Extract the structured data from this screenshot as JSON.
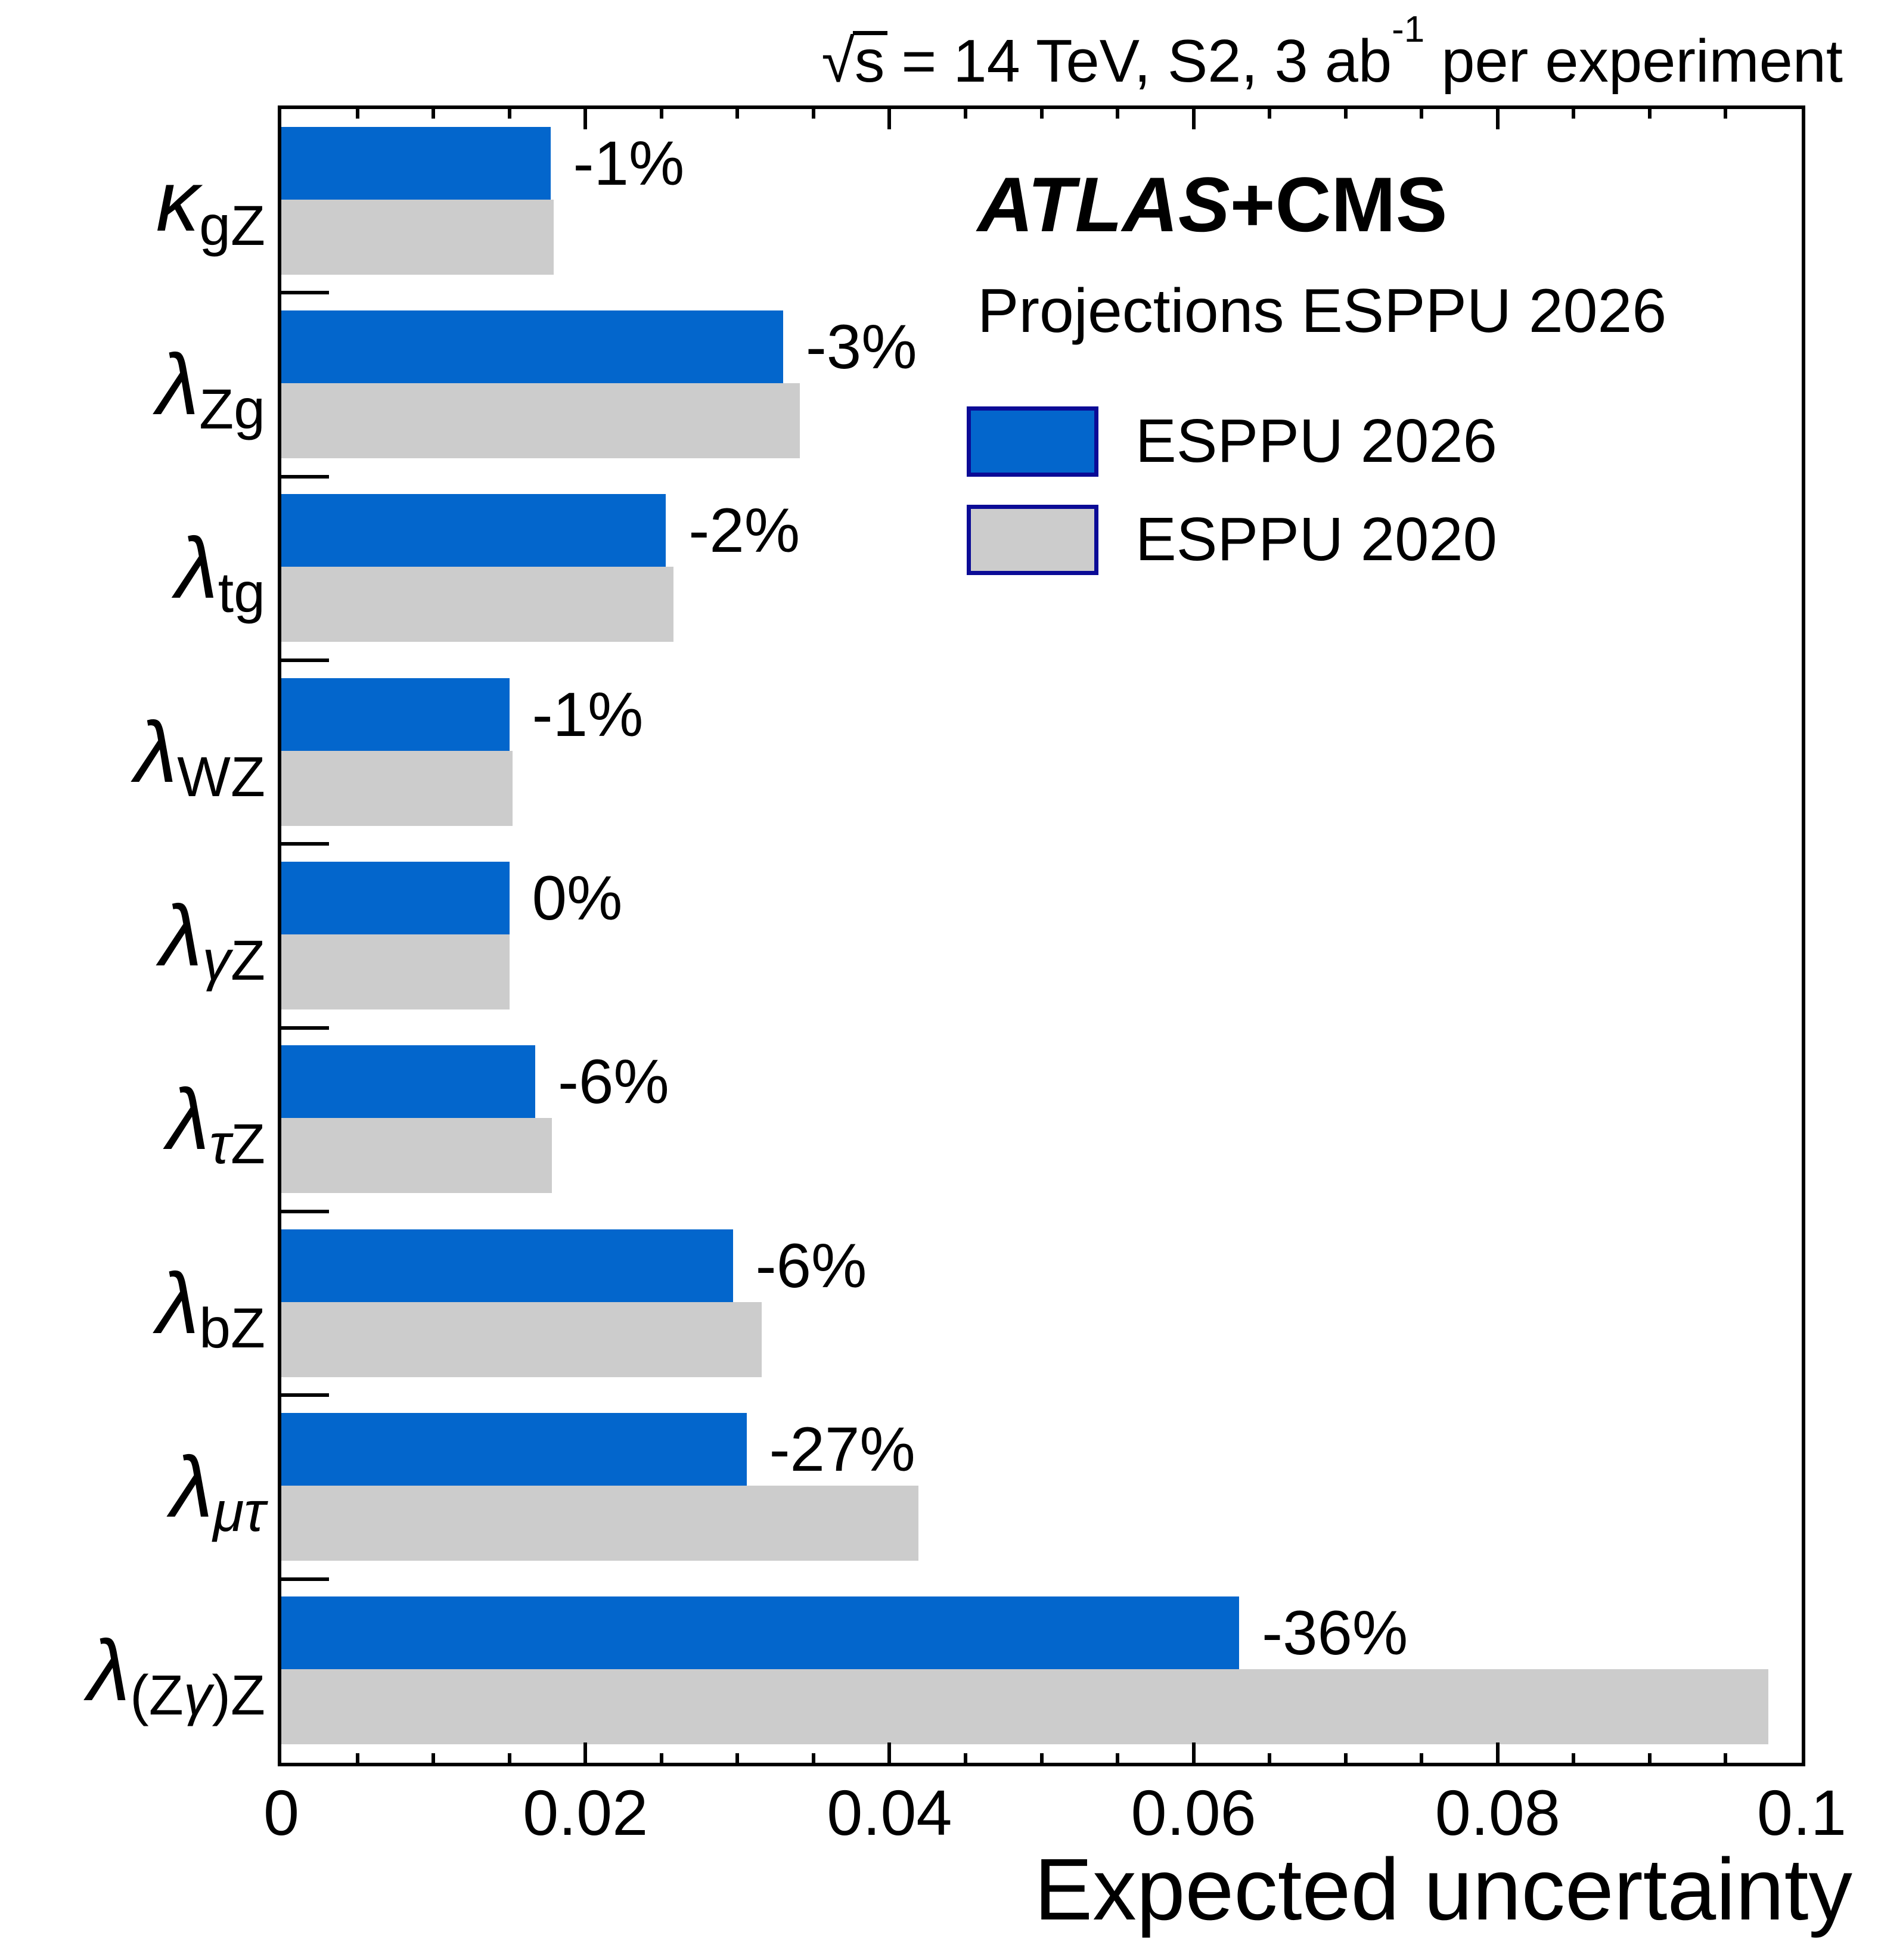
{
  "header": {
    "sqrt": "√",
    "sqrt_arg": "s",
    "title_mid": " = 14 TeV, S2, 3 ab",
    "lumi_exponent": "-1",
    "title_end": " per experiment"
  },
  "annotations": {
    "experiment_italic": "ATLAS",
    "experiment_plain": "+CMS",
    "subtitle": "Projections ESPPU 2026"
  },
  "legend": [
    {
      "label": "ESPPU 2026",
      "color": "#0366cc"
    },
    {
      "label": "ESPPU 2020",
      "color": "#cccccc"
    }
  ],
  "axis": {
    "x_title": "Expected uncertainty"
  },
  "chart_data": {
    "type": "bar",
    "orientation": "horizontal",
    "title": "√s = 14 TeV, S2, 3 ab⁻¹ per experiment",
    "xlabel": "Expected uncertainty",
    "xlim": [
      0,
      0.1
    ],
    "x_major_step": 0.02,
    "x_minor_step": 0.005,
    "x_tick_values": [
      0,
      0.02,
      0.04,
      0.06,
      0.08,
      0.1
    ],
    "x_tick_labels": [
      "0",
      "0.02",
      "0.04",
      "0.06",
      "0.08",
      "0.1"
    ],
    "grid": false,
    "legend_position": "top-right",
    "categories": [
      {
        "id": "kgZ",
        "main": "κ",
        "sub": "gZ"
      },
      {
        "id": "lZg",
        "main": "λ",
        "sub": "Zg"
      },
      {
        "id": "ltg",
        "main": "λ",
        "sub": "tg"
      },
      {
        "id": "lWZ",
        "main": "λ",
        "sub": "WZ"
      },
      {
        "id": "lgammaZ",
        "main": "λ",
        "sub": "γZ"
      },
      {
        "id": "ltauZ",
        "main": "λ",
        "sub": "τZ"
      },
      {
        "id": "lbZ",
        "main": "λ",
        "sub": "bZ"
      },
      {
        "id": "lmutau",
        "main": "λ",
        "sub": "μτ"
      },
      {
        "id": "lZgammaZ",
        "main": "λ",
        "sub": "(Zγ)Z"
      }
    ],
    "series": [
      {
        "id": "esppu2026",
        "name": "ESPPU 2026",
        "values": [
          0.0177,
          0.033,
          0.0253,
          0.015,
          0.015,
          0.0167,
          0.0297,
          0.0306,
          0.063
        ]
      },
      {
        "id": "esppu2020",
        "name": "ESPPU 2020",
        "values": [
          0.0179,
          0.0341,
          0.0258,
          0.0152,
          0.015,
          0.0178,
          0.0316,
          0.0419,
          0.0978
        ]
      }
    ],
    "changes": [
      "-1%",
      "-3%",
      "-2%",
      "-1%",
      "0%",
      "-6%",
      "-6%",
      "-27%",
      "-36%"
    ],
    "colors": {
      "esppu2026": "#0366cc",
      "esppu2020": "#cccccc",
      "legend_border": "#0b0b96",
      "axis": "#000000"
    }
  }
}
